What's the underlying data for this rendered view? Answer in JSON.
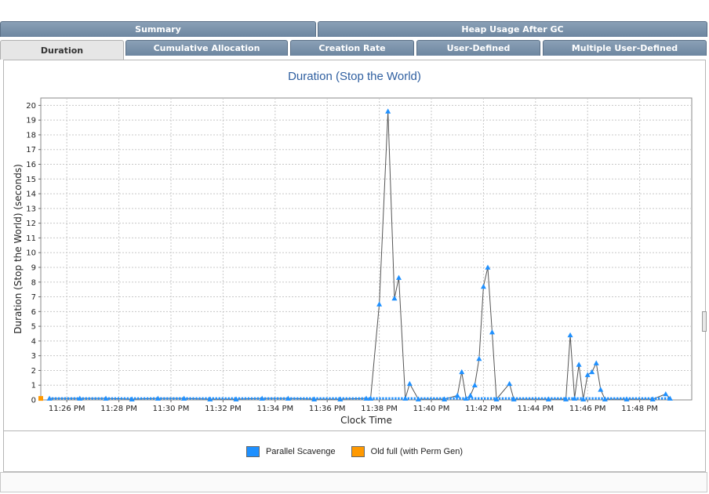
{
  "tabs_top": [
    {
      "label": "Summary"
    },
    {
      "label": "Heap Usage After GC"
    }
  ],
  "tabs_bottom": [
    {
      "label": "Duration",
      "active": true
    },
    {
      "label": "Cumulative Allocation"
    },
    {
      "label": "Creation Rate"
    },
    {
      "label": "User-Defined"
    },
    {
      "label": "Multiple User-Defined"
    }
  ],
  "colors": {
    "parallel_scavenge": "#1e90ff",
    "old_full": "#ff9900",
    "title": "#2f5fa0"
  },
  "chart_data": {
    "type": "line",
    "title": "Duration (Stop the World)",
    "xlabel": "Clock Time",
    "ylabel": "Duration (Stop the World)  (seconds)",
    "xlim": [
      "11:25",
      "11:50"
    ],
    "ylim": [
      0,
      20.5
    ],
    "y_ticks": [
      0,
      1,
      2,
      3,
      4,
      5,
      6,
      7,
      8,
      9,
      10,
      11,
      12,
      13,
      14,
      15,
      16,
      17,
      18,
      19,
      20
    ],
    "x_ticks": [
      "11:26 PM",
      "11:28 PM",
      "11:30 PM",
      "11:32 PM",
      "11:34 PM",
      "11:36 PM",
      "11:38 PM",
      "11:40 PM",
      "11:42 PM",
      "11:44 PM",
      "11:46 PM",
      "11:48 PM"
    ],
    "grid": true,
    "legend_position": "bottom",
    "series": [
      {
        "name": "Parallel Scavenge",
        "color": "#1e90ff",
        "points": [
          [
            "11:25:20",
            0.1
          ],
          [
            "11:26:30",
            0.1
          ],
          [
            "11:27:30",
            0.1
          ],
          [
            "11:28:30",
            0.05
          ],
          [
            "11:29:30",
            0.1
          ],
          [
            "11:30:30",
            0.1
          ],
          [
            "11:31:30",
            0.05
          ],
          [
            "11:32:30",
            0.05
          ],
          [
            "11:33:30",
            0.1
          ],
          [
            "11:34:30",
            0.1
          ],
          [
            "11:35:30",
            0.05
          ],
          [
            "11:36:30",
            0.05
          ],
          [
            "11:37:30",
            0.1
          ],
          [
            "11:37:40",
            0.1
          ],
          [
            "11:38:00",
            6.5
          ],
          [
            "11:38:20",
            19.6
          ],
          [
            "11:38:35",
            6.9
          ],
          [
            "11:38:45",
            8.3
          ],
          [
            "11:39:00",
            0.1
          ],
          [
            "11:39:10",
            1.1
          ],
          [
            "11:39:30",
            0.05
          ],
          [
            "11:40:30",
            0.05
          ],
          [
            "11:41:00",
            0.3
          ],
          [
            "11:41:10",
            1.9
          ],
          [
            "11:41:20",
            0.1
          ],
          [
            "11:41:30",
            0.3
          ],
          [
            "11:41:40",
            1.0
          ],
          [
            "11:41:50",
            2.8
          ],
          [
            "11:42:00",
            7.7
          ],
          [
            "11:42:10",
            9.0
          ],
          [
            "11:42:20",
            4.6
          ],
          [
            "11:42:30",
            0.05
          ],
          [
            "11:43:00",
            1.1
          ],
          [
            "11:43:10",
            0.05
          ],
          [
            "11:44:30",
            0.05
          ],
          [
            "11:45:10",
            0.05
          ],
          [
            "11:45:20",
            4.4
          ],
          [
            "11:45:30",
            0.1
          ],
          [
            "11:45:40",
            2.4
          ],
          [
            "11:45:50",
            0.05
          ],
          [
            "11:46:00",
            1.7
          ],
          [
            "11:46:10",
            1.9
          ],
          [
            "11:46:20",
            2.5
          ],
          [
            "11:46:30",
            0.7
          ],
          [
            "11:46:40",
            0.05
          ],
          [
            "11:47:30",
            0.05
          ],
          [
            "11:48:30",
            0.05
          ],
          [
            "11:49:00",
            0.4
          ],
          [
            "11:49:10",
            0.1
          ]
        ]
      },
      {
        "name": "Old full (with Perm Gen)",
        "color": "#ff9900",
        "points": [
          [
            "11:25:00",
            0.1
          ]
        ]
      }
    ]
  }
}
